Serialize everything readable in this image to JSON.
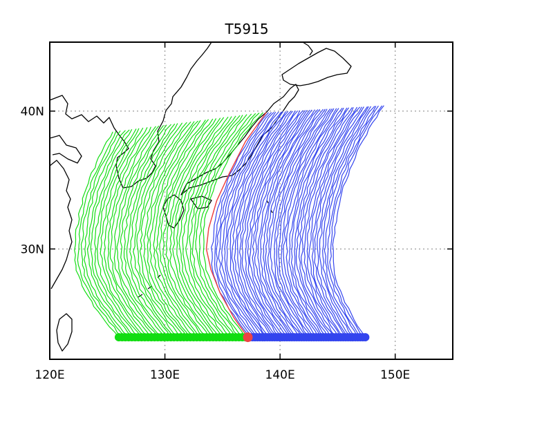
{
  "title": "T5915",
  "map": {
    "lon_range": [
      120,
      155
    ],
    "lat_range": [
      22,
      45
    ],
    "x_ticks": [
      {
        "value": 120,
        "label": "120E"
      },
      {
        "value": 130,
        "label": "130E"
      },
      {
        "value": 140,
        "label": "140E"
      },
      {
        "value": 150,
        "label": "150E"
      }
    ],
    "y_ticks": [
      {
        "value": 30,
        "label": "30N"
      },
      {
        "value": 40,
        "label": "40N"
      }
    ],
    "gridlines": "dotted",
    "colors": {
      "west_tracks": "#11dd11",
      "east_tracks": "#3344ee",
      "observed_track": "#ee4444",
      "coastline": "#000000",
      "grid": "#999999"
    }
  },
  "chart_data": {
    "type": "scatter",
    "title": "T5915",
    "xlabel": "",
    "ylabel": "",
    "xlim": [
      120,
      155
    ],
    "ylim": [
      22,
      45
    ],
    "grid": true,
    "series": [
      {
        "role": "observed-track",
        "color": "#ee4444",
        "points": [
          [
            137.2,
            23.6
          ],
          [
            136.0,
            25.0
          ],
          [
            134.8,
            26.8
          ],
          [
            134.0,
            28.5
          ],
          [
            133.6,
            30.0
          ],
          [
            133.8,
            31.5
          ],
          [
            134.5,
            33.5
          ],
          [
            135.6,
            35.5
          ],
          [
            137.0,
            37.8
          ],
          [
            138.8,
            39.9
          ]
        ]
      },
      {
        "role": "west-ensemble-tracks",
        "color": "#11dd11",
        "track_count": 40,
        "start_lon_range": [
          126.0,
          137.0
        ],
        "start_lat": 23.6,
        "end_lat_range": [
          38.5,
          39.9
        ],
        "west_turn_lon": 122.2
      },
      {
        "role": "east-ensemble-tracks",
        "color": "#3344ee",
        "track_count": 48,
        "start_lon_range": [
          137.4,
          147.4
        ],
        "start_lat": 23.6,
        "end_lat_range": [
          39.9,
          40.4
        ],
        "east_end_lon": 149.0
      }
    ]
  }
}
